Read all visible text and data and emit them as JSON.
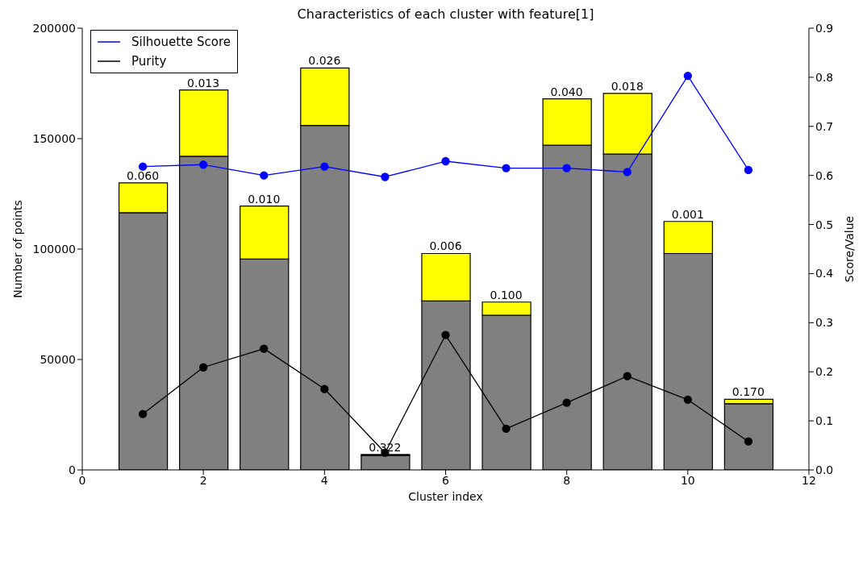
{
  "chart_data": {
    "type": "bar",
    "title": "Characteristics of each cluster with feature[1]",
    "xlabel": "Cluster index",
    "ylabel": "Number of points",
    "y2label": "Score/Value",
    "x": [
      1,
      2,
      3,
      4,
      5,
      6,
      7,
      8,
      9,
      10,
      11
    ],
    "stacked": true,
    "series": [
      {
        "color": "#808080",
        "values": [
          116500,
          142000,
          95500,
          156000,
          6500,
          76500,
          70000,
          147000,
          143000,
          98000,
          30000
        ]
      },
      {
        "color": "#ffff00",
        "values": [
          13500,
          30000,
          24000,
          26000,
          500,
          21500,
          6000,
          21000,
          27500,
          14500,
          2000
        ]
      },
      {
        "type": "line",
        "name": "Silhouette Score",
        "color": "#0000ff",
        "axis": "y2",
        "values": [
          0.618,
          0.622,
          0.6,
          0.618,
          0.597,
          0.629,
          0.615,
          0.615,
          0.607,
          0.803,
          0.611
        ]
      },
      {
        "type": "line",
        "name": "Purity",
        "color": "#000000",
        "axis": "y2",
        "values": [
          0.114,
          0.209,
          0.247,
          0.165,
          0.035,
          0.275,
          0.084,
          0.137,
          0.191,
          0.143,
          0.058
        ]
      }
    ],
    "annotations": [
      {
        "text": "0.060",
        "x": 1,
        "y": 130000
      },
      {
        "text": "0.013",
        "x": 2,
        "y": 172000
      },
      {
        "text": "0.010",
        "x": 3,
        "y": 119500
      },
      {
        "text": "0.026",
        "x": 4,
        "y": 182000
      },
      {
        "text": "0.322",
        "x": 5,
        "y": 7000
      },
      {
        "text": "0.006",
        "x": 6,
        "y": 98000
      },
      {
        "text": "0.100",
        "x": 7,
        "y": 76000
      },
      {
        "text": "0.040",
        "x": 8,
        "y": 168000
      },
      {
        "text": "0.018",
        "x": 9,
        "y": 170500
      },
      {
        "text": "0.001",
        "x": 10,
        "y": 112500
      },
      {
        "text": "0.170",
        "x": 11,
        "y": 32000
      }
    ],
    "xlim": [
      0,
      12
    ],
    "xticks": [
      0,
      2,
      4,
      6,
      8,
      10,
      12
    ],
    "ylim": [
      0,
      200000
    ],
    "yticks": [
      0,
      50000,
      100000,
      150000,
      200000
    ],
    "y2lim": [
      0,
      0.9
    ],
    "y2ticks": [
      {
        "value": 0,
        "label": "0.0"
      },
      {
        "value": 0.1,
        "label": "0.1"
      },
      {
        "value": 0.2,
        "label": "0.2"
      },
      {
        "value": 0.3,
        "label": "0.3"
      },
      {
        "value": 0.4,
        "label": "0.4"
      },
      {
        "value": 0.5,
        "label": "0.5"
      },
      {
        "value": 0.6,
        "label": "0.6"
      },
      {
        "value": 0.7,
        "label": "0.7"
      },
      {
        "value": 0.8,
        "label": "0.8"
      },
      {
        "value": 0.9,
        "label": "0.9"
      }
    ],
    "legend": "top left",
    "marker": "circle",
    "line_style": "solid",
    "grid": false
  }
}
